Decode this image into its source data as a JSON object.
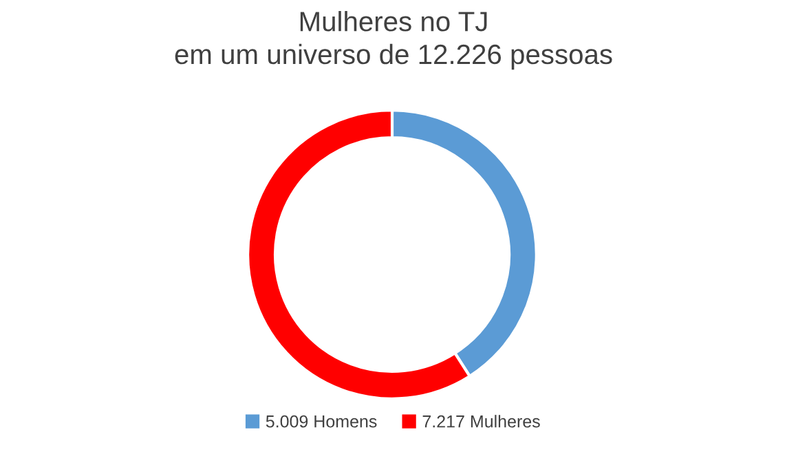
{
  "chart_data": {
    "type": "donut",
    "title": "Mulheres no TJ\nem um universo de 12.226 pessoas",
    "categories": [
      "5.009 Homens",
      "7.217 Mulheres"
    ],
    "values": [
      5009,
      7217
    ],
    "colors": [
      "#5b9bd5",
      "#ff0000"
    ],
    "legend": "bottom"
  }
}
